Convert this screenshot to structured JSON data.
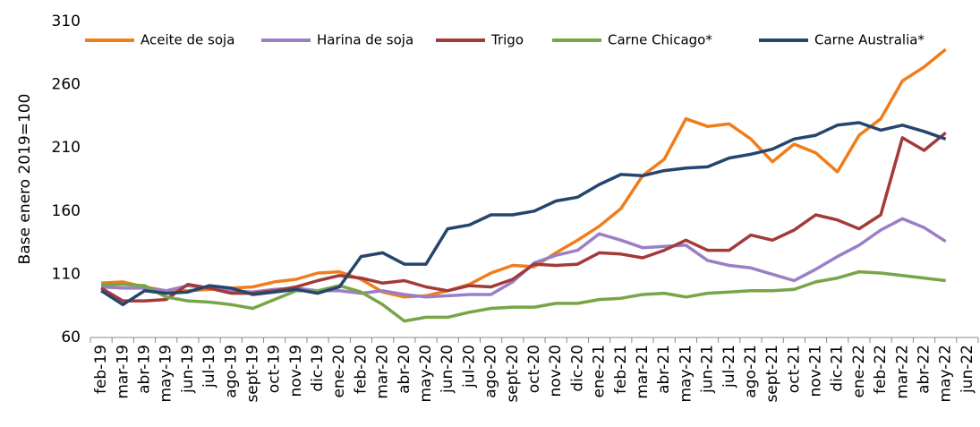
{
  "chart_data": {
    "type": "line",
    "y_label": "Base enero 2019=100",
    "categories": [
      "feb-19",
      "mar-19",
      "abr-19",
      "may-19",
      "jun-19",
      "jul-19",
      "ago-19",
      "sept-19",
      "oct-19",
      "nov-19",
      "dic-19",
      "ene-20",
      "feb-20",
      "mar-20",
      "abr-20",
      "may-20",
      "jun-20",
      "jul-20",
      "ago-20",
      "sept-20",
      "oct-20",
      "nov-20",
      "dic-20",
      "ene-21",
      "feb-21",
      "mar-21",
      "abr-21",
      "may-21",
      "jun-21",
      "jul-21",
      "ago-21",
      "sept-21",
      "oct-21",
      "nov-21",
      "dic-21",
      "ene-22",
      "feb-22",
      "mar-22",
      "abr-22",
      "may-22",
      "jun-22"
    ],
    "series": [
      {
        "name": "Aceite de soja",
        "color": "#f07d1a",
        "values": [
          103,
          104,
          100,
          97,
          97,
          98,
          99,
          100,
          104,
          106,
          111,
          112,
          106,
          96,
          92,
          93,
          97,
          102,
          111,
          117,
          116,
          127,
          137,
          148,
          162,
          188,
          201,
          233,
          227,
          229,
          217,
          199,
          213,
          206,
          191,
          220,
          233,
          263,
          274,
          288,
          null
        ]
      },
      {
        "name": "Harina de soja",
        "color": "#9a7fc6",
        "values": [
          100,
          99,
          99,
          97,
          101,
          99,
          97,
          96,
          98,
          99,
          97,
          97,
          95,
          97,
          94,
          92,
          93,
          94,
          94,
          104,
          119,
          125,
          129,
          142,
          137,
          131,
          132,
          133,
          121,
          117,
          115,
          110,
          105,
          114,
          124,
          133,
          145,
          154,
          147,
          136,
          null
        ]
      },
      {
        "name": "Trigo",
        "color": "#a33a3a",
        "values": [
          99,
          89,
          89,
          90,
          102,
          99,
          95,
          95,
          97,
          100,
          105,
          109,
          107,
          103,
          105,
          100,
          97,
          101,
          100,
          106,
          118,
          117,
          118,
          127,
          126,
          123,
          129,
          137,
          129,
          129,
          141,
          137,
          145,
          157,
          153,
          146,
          157,
          218,
          208,
          222,
          null
        ]
      },
      {
        "name": "Carne Chicago*",
        "color": "#77a547",
        "values": [
          102,
          102,
          101,
          92,
          89,
          88,
          86,
          83,
          90,
          97,
          97,
          101,
          96,
          86,
          73,
          76,
          76,
          80,
          83,
          84,
          84,
          87,
          87,
          90,
          91,
          94,
          95,
          92,
          95,
          96,
          97,
          97,
          98,
          104,
          107,
          112,
          111,
          109,
          107,
          105,
          null
        ]
      },
      {
        "name": "Carne Australia*",
        "color": "#26456e",
        "values": [
          97,
          86,
          97,
          95,
          96,
          101,
          99,
          94,
          96,
          98,
          95,
          100,
          124,
          127,
          118,
          118,
          146,
          149,
          157,
          157,
          160,
          168,
          171,
          181,
          189,
          188,
          192,
          194,
          195,
          202,
          205,
          209,
          217,
          220,
          228,
          230,
          224,
          228,
          223,
          217,
          null
        ]
      }
    ],
    "ylim": [
      60,
      310
    ],
    "yticks": [
      60,
      110,
      160,
      210,
      260,
      310
    ]
  }
}
